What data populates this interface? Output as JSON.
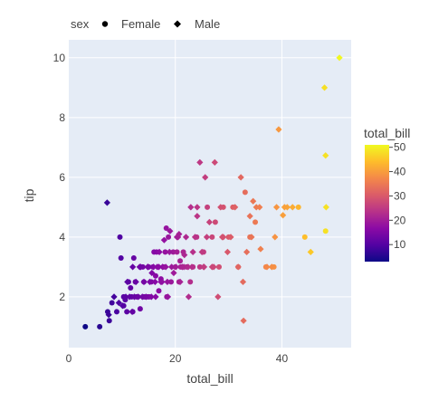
{
  "chart_data": {
    "type": "scatter",
    "xlabel": "total_bill",
    "ylabel": "tip",
    "xlim": [
      0,
      53
    ],
    "ylim": [
      0.3,
      10.6
    ],
    "x_ticks": [
      0,
      20,
      40
    ],
    "y_ticks": [
      2,
      4,
      6,
      8,
      10
    ],
    "grid": true,
    "legend": {
      "title": "sex",
      "placement": "top",
      "entries": [
        {
          "label": "Female",
          "symbol": "circle"
        },
        {
          "label": "Male",
          "symbol": "diamond"
        }
      ]
    },
    "colorbar": {
      "title": "total_bill",
      "range": [
        3,
        51
      ],
      "ticks": [
        10,
        20,
        30,
        40,
        50
      ],
      "colors": [
        "#0d0887",
        "#5302a3",
        "#8b0aa5",
        "#b83289",
        "#db5c68",
        "#f48849",
        "#febd2a",
        "#f0f921"
      ]
    },
    "series": [
      {
        "name": "Female",
        "symbol": "circle",
        "x": [
          3.1,
          5.8,
          7.3,
          7.6,
          8.1,
          9.0,
          9.6,
          10.3,
          10.3,
          10.6,
          10.9,
          11.2,
          11.6,
          12.0,
          12.5,
          12.7,
          13.0,
          13.4,
          13.9,
          14.1,
          14.3,
          14.8,
          15.0,
          15.5,
          15.8,
          16.3,
          16.5,
          16.9,
          17.3,
          17.8,
          18.1,
          18.4,
          18.7,
          19.2,
          19.6,
          20.0,
          20.3,
          20.7,
          21.0,
          21.5,
          22.1,
          22.8,
          23.3,
          24.0,
          24.6,
          25.3,
          26.0,
          26.9,
          27.5,
          28.2,
          29.0,
          30.0,
          30.8,
          31.8,
          33.1,
          34.0,
          35.0,
          37.0,
          38.5,
          43.1,
          44.3,
          48.2,
          9.8,
          11.8,
          15.1,
          16.0,
          18.3,
          20.9,
          12.2,
          14.0
        ],
        "y": [
          1.0,
          1.0,
          1.5,
          1.2,
          1.8,
          1.5,
          4.0,
          1.7,
          2.0,
          1.9,
          1.5,
          2.5,
          2.3,
          1.5,
          2.5,
          2.0,
          2.0,
          1.6,
          3.0,
          2.5,
          2.0,
          2.0,
          3.0,
          2.5,
          3.0,
          2.7,
          3.5,
          2.2,
          2.6,
          3.0,
          3.5,
          2.0,
          4.0,
          2.5,
          3.5,
          3.0,
          3.5,
          2.5,
          3.0,
          3.5,
          3.0,
          2.5,
          3.0,
          4.0,
          3.0,
          3.5,
          5.0,
          4.0,
          4.5,
          3.0,
          5.0,
          4.0,
          5.0,
          3.0,
          5.5,
          4.0,
          4.5,
          3.0,
          3.0,
          5.0,
          4.0,
          4.2,
          3.3,
          2.0,
          2.0,
          3.5,
          4.3,
          3.2,
          3.3,
          2.0
        ]
      },
      {
        "name": "Male",
        "symbol": "diamond",
        "x": [
          7.2,
          7.5,
          8.5,
          9.4,
          10.1,
          10.7,
          11.0,
          11.4,
          11.9,
          12.3,
          12.6,
          13.0,
          13.3,
          13.8,
          14.1,
          14.5,
          14.8,
          15.2,
          15.5,
          15.9,
          16.2,
          16.6,
          17.0,
          17.3,
          17.6,
          17.9,
          18.2,
          18.5,
          18.9,
          19.3,
          19.7,
          20.1,
          20.5,
          20.9,
          21.3,
          21.6,
          22.0,
          22.4,
          22.9,
          23.3,
          23.7,
          24.1,
          24.6,
          25.0,
          25.4,
          25.9,
          26.4,
          26.9,
          27.4,
          28.0,
          28.5,
          29.0,
          29.8,
          30.4,
          31.2,
          31.8,
          32.3,
          32.8,
          33.4,
          34.0,
          34.6,
          35.2,
          36.0,
          37.2,
          38.1,
          39.0,
          39.4,
          40.2,
          41.0,
          42.0,
          45.4,
          48.0,
          48.2,
          48.3,
          50.8,
          32.7,
          34.3,
          35.8,
          38.7,
          40.5,
          23.1,
          24.1,
          25.6,
          27.2,
          28.8,
          20.7,
          22.5,
          16.3,
          17.5,
          19.0,
          21.7,
          13.5,
          15.6,
          14.9,
          18.6,
          20.3,
          16.9,
          25.3,
          12.0
        ],
        "y": [
          5.15,
          1.4,
          2.0,
          1.8,
          1.7,
          2.0,
          2.5,
          2.0,
          1.5,
          2.0,
          2.5,
          2.0,
          3.0,
          2.0,
          2.5,
          2.0,
          3.0,
          2.5,
          2.0,
          3.0,
          2.5,
          3.0,
          3.5,
          2.5,
          3.0,
          3.9,
          3.0,
          2.5,
          3.5,
          3.0,
          2.8,
          3.0,
          4.0,
          2.5,
          3.0,
          3.0,
          4.0,
          3.0,
          5.0,
          3.5,
          4.0,
          4.7,
          6.5,
          3.5,
          3.0,
          4.0,
          4.5,
          3.0,
          6.5,
          2.0,
          5.0,
          4.0,
          3.5,
          4.0,
          5.0,
          3.0,
          6.0,
          1.2,
          3.5,
          4.7,
          5.2,
          5.0,
          3.6,
          3.0,
          3.0,
          5.0,
          7.6,
          4.73,
          5.0,
          5.0,
          3.5,
          9.0,
          6.73,
          5.0,
          10.0,
          2.5,
          4.0,
          5.0,
          4.0,
          5.0,
          3.0,
          5.0,
          6.0,
          3.0,
          4.0,
          4.1,
          2.0,
          2.0,
          2.5,
          4.2,
          3.4,
          3.0,
          2.8,
          3.0,
          2.0,
          4.0,
          3.0,
          3.0,
          3.0
        ]
      }
    ]
  }
}
